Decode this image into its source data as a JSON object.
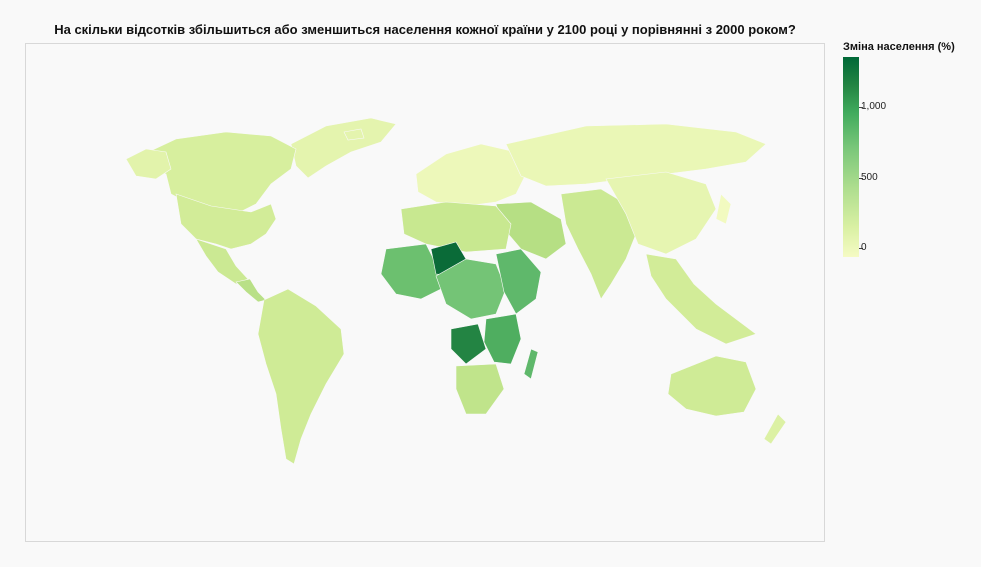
{
  "title": "На скільки відсотків збільшиться або зменшиться населення кожної країни у 2100 році у порівнянні з 2000 роком?",
  "legend": {
    "title": "Зміна населення (%)",
    "ticks": [
      "1,000",
      "500",
      "0"
    ],
    "tick_values": [
      1000,
      500,
      0
    ],
    "min": -100,
    "max": 1300
  },
  "colors": {
    "background": "#f9f9f9",
    "low": "#f5fbc4",
    "mid": "#78c679",
    "high": "#006837"
  }
}
